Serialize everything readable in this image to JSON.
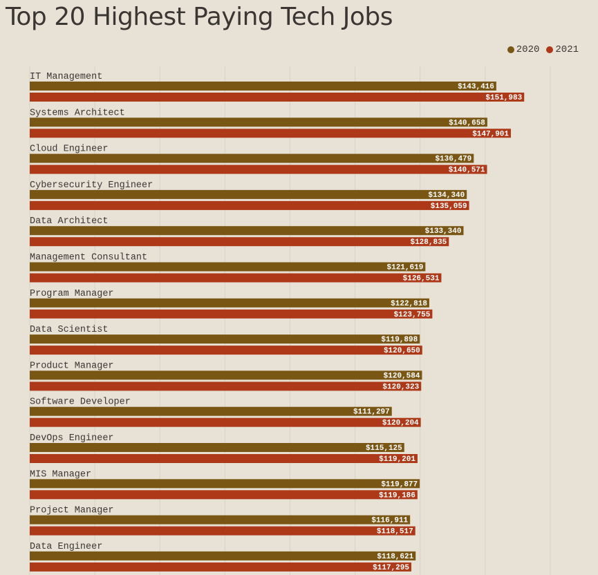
{
  "title": "Top 20 Highest Paying Tech Jobs",
  "legend": [
    {
      "label": "2020",
      "color": "#7a5614"
    },
    {
      "label": "2021",
      "color": "#ad3918"
    }
  ],
  "chart_data": {
    "type": "bar",
    "orientation": "horizontal",
    "title": "Top 20 Highest Paying Tech Jobs",
    "categories": [
      "IT Management",
      "Systems Architect",
      "Cloud Engineer",
      "Cybersecurity Engineer",
      "Data Architect",
      "Management Consultant",
      "Program Manager",
      "Data Scientist",
      "Product Manager",
      "Software Developer",
      "DevOps Engineer",
      "MIS Manager",
      "Project Manager",
      "Data Engineer"
    ],
    "series": [
      {
        "name": "2020",
        "color": "#7a5614",
        "values": [
          143416,
          140658,
          136479,
          134340,
          133340,
          121619,
          122818,
          119898,
          120584,
          111297,
          115125,
          119877,
          116911,
          118621
        ],
        "labels": [
          "$143,416",
          "$140,658",
          "$136,479",
          "$134,340",
          "$133,340",
          "$121,619",
          "$122,818",
          "$119,898",
          "$120,584",
          "$111,297",
          "$115,125",
          "$119,877",
          "$116,911",
          "$118,621"
        ]
      },
      {
        "name": "2021",
        "color": "#ad3918",
        "values": [
          151983,
          147901,
          140571,
          135059,
          128835,
          126531,
          123755,
          120650,
          120323,
          120204,
          119201,
          119186,
          118517,
          117295
        ],
        "labels": [
          "$151,983",
          "$147,901",
          "$140,571",
          "$135,059",
          "$128,835",
          "$126,531",
          "$123,755",
          "$120,650",
          "$120,323",
          "$120,204",
          "$119,201",
          "$119,186",
          "$118,517",
          "$117,295"
        ]
      }
    ],
    "xlim": [
      0,
      170000
    ],
    "grid": true,
    "legend_position": "top-right"
  }
}
